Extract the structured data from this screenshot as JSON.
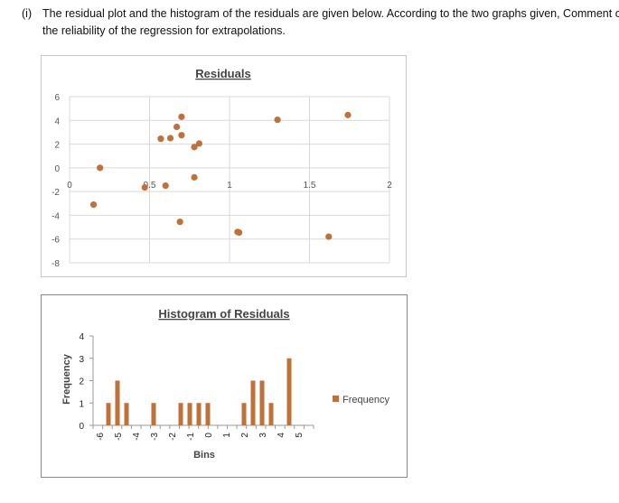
{
  "question": {
    "number": "(i)",
    "text": "The residual plot and the histogram of the residuals are given below. According to the two graphs given, Comment on the reliability of the regression for extrapolations."
  },
  "chart_data": [
    {
      "type": "scatter",
      "title": "Residuals",
      "xlim": [
        0,
        2
      ],
      "ylim": [
        -8,
        6
      ],
      "xticks": [
        "0",
        "0.5",
        "1",
        "1.5",
        "2"
      ],
      "yticks": [
        "6",
        "4",
        "2",
        "0",
        "-2",
        "-4",
        "-6",
        "-8"
      ],
      "grid": true,
      "color": "#c0713a",
      "points": [
        [
          0.15,
          -3.1
        ],
        [
          0.19,
          0
        ],
        [
          0.47,
          -1.65
        ],
        [
          0.57,
          2.45
        ],
        [
          0.6,
          -1.5
        ],
        [
          0.63,
          2.5
        ],
        [
          0.67,
          3.45
        ],
        [
          0.69,
          -4.55
        ],
        [
          0.7,
          4.3
        ],
        [
          0.7,
          2.75
        ],
        [
          0.78,
          1.75
        ],
        [
          0.78,
          -0.8
        ],
        [
          0.81,
          2.05
        ],
        [
          1.05,
          -5.4
        ],
        [
          1.06,
          -5.45
        ],
        [
          1.3,
          4.05
        ],
        [
          1.62,
          -5.8
        ],
        [
          1.74,
          4.45
        ]
      ]
    },
    {
      "type": "bar",
      "title": "Histogram of Residuals",
      "xlabel": "Bins",
      "ylabel": "Frequency",
      "ylim": [
        0,
        4
      ],
      "yticks": [
        "4",
        "3",
        "2",
        "1",
        "0"
      ],
      "xticks": [
        "-6",
        "-5",
        "-4",
        "-3",
        "-2",
        "-1",
        "0",
        "1",
        "2",
        "3",
        "4",
        "5"
      ],
      "legend": "right",
      "color": "#c0713a",
      "series": [
        {
          "name": "Frequency",
          "values": [
            [
              -5.5,
              1
            ],
            [
              -5,
              2
            ],
            [
              -4.5,
              1
            ],
            [
              -3,
              1
            ],
            [
              -1.5,
              1
            ],
            [
              -1,
              1
            ],
            [
              -0.5,
              1
            ],
            [
              0,
              1
            ],
            [
              2,
              1
            ],
            [
              2.5,
              2
            ],
            [
              3,
              2
            ],
            [
              3.5,
              1
            ],
            [
              4.5,
              3
            ]
          ]
        }
      ]
    }
  ]
}
